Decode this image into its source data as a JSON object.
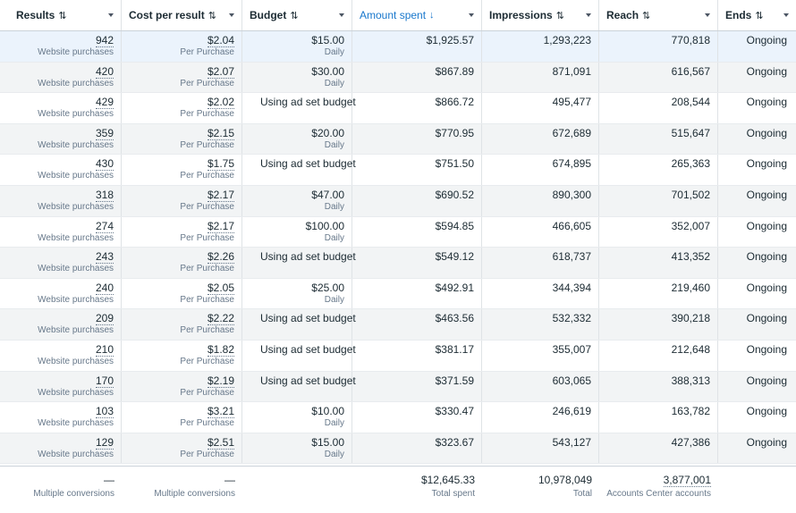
{
  "columns": [
    {
      "label": "Results",
      "sort_icon": "⇅",
      "active": false
    },
    {
      "label": "Cost per result",
      "sort_icon": "⇅",
      "active": false
    },
    {
      "label": "Budget",
      "sort_icon": "⇅",
      "active": false
    },
    {
      "label": "Amount spent",
      "sort_icon": "↓",
      "active": true
    },
    {
      "label": "Impressions",
      "sort_icon": "⇅",
      "active": false
    },
    {
      "label": "Reach",
      "sort_icon": "⇅",
      "active": false
    },
    {
      "label": "Ends",
      "sort_icon": "⇅",
      "active": false
    }
  ],
  "rows": [
    {
      "results": "942",
      "results_sub": "Website purchases",
      "cpr": "$2.04",
      "cpr_sub": "Per Purchase",
      "budget": "$15.00",
      "budget_sub": "Daily",
      "spent": "$1,925.57",
      "impressions": "1,293,223",
      "reach": "770,818",
      "ends": "Ongoing"
    },
    {
      "results": "420",
      "results_sub": "Website purchases",
      "cpr": "$2.07",
      "cpr_sub": "Per Purchase",
      "budget": "$30.00",
      "budget_sub": "Daily",
      "spent": "$867.89",
      "impressions": "871,091",
      "reach": "616,567",
      "ends": "Ongoing"
    },
    {
      "results": "429",
      "results_sub": "Website purchases",
      "cpr": "$2.02",
      "cpr_sub": "Per Purchase",
      "budget": "Using ad set budget",
      "budget_sub": "",
      "spent": "$866.72",
      "impressions": "495,477",
      "reach": "208,544",
      "ends": "Ongoing"
    },
    {
      "results": "359",
      "results_sub": "Website purchases",
      "cpr": "$2.15",
      "cpr_sub": "Per Purchase",
      "budget": "$20.00",
      "budget_sub": "Daily",
      "spent": "$770.95",
      "impressions": "672,689",
      "reach": "515,647",
      "ends": "Ongoing"
    },
    {
      "results": "430",
      "results_sub": "Website purchases",
      "cpr": "$1.75",
      "cpr_sub": "Per Purchase",
      "budget": "Using ad set budget",
      "budget_sub": "",
      "spent": "$751.50",
      "impressions": "674,895",
      "reach": "265,363",
      "ends": "Ongoing"
    },
    {
      "results": "318",
      "results_sub": "Website purchases",
      "cpr": "$2.17",
      "cpr_sub": "Per Purchase",
      "budget": "$47.00",
      "budget_sub": "Daily",
      "spent": "$690.52",
      "impressions": "890,300",
      "reach": "701,502",
      "ends": "Ongoing"
    },
    {
      "results": "274",
      "results_sub": "Website purchases",
      "cpr": "$2.17",
      "cpr_sub": "Per Purchase",
      "budget": "$100.00",
      "budget_sub": "Daily",
      "spent": "$594.85",
      "impressions": "466,605",
      "reach": "352,007",
      "ends": "Ongoing"
    },
    {
      "results": "243",
      "results_sub": "Website purchases",
      "cpr": "$2.26",
      "cpr_sub": "Per Purchase",
      "budget": "Using ad set budget",
      "budget_sub": "",
      "spent": "$549.12",
      "impressions": "618,737",
      "reach": "413,352",
      "ends": "Ongoing"
    },
    {
      "results": "240",
      "results_sub": "Website purchases",
      "cpr": "$2.05",
      "cpr_sub": "Per Purchase",
      "budget": "$25.00",
      "budget_sub": "Daily",
      "spent": "$492.91",
      "impressions": "344,394",
      "reach": "219,460",
      "ends": "Ongoing"
    },
    {
      "results": "209",
      "results_sub": "Website purchases",
      "cpr": "$2.22",
      "cpr_sub": "Per Purchase",
      "budget": "Using ad set budget",
      "budget_sub": "",
      "spent": "$463.56",
      "impressions": "532,332",
      "reach": "390,218",
      "ends": "Ongoing"
    },
    {
      "results": "210",
      "results_sub": "Website purchases",
      "cpr": "$1.82",
      "cpr_sub": "Per Purchase",
      "budget": "Using ad set budget",
      "budget_sub": "",
      "spent": "$381.17",
      "impressions": "355,007",
      "reach": "212,648",
      "ends": "Ongoing"
    },
    {
      "results": "170",
      "results_sub": "Website purchases",
      "cpr": "$2.19",
      "cpr_sub": "Per Purchase",
      "budget": "Using ad set budget",
      "budget_sub": "",
      "spent": "$371.59",
      "impressions": "603,065",
      "reach": "388,313",
      "ends": "Ongoing"
    },
    {
      "results": "103",
      "results_sub": "Website purchases",
      "cpr": "$3.21",
      "cpr_sub": "Per Purchase",
      "budget": "$10.00",
      "budget_sub": "Daily",
      "spent": "$330.47",
      "impressions": "246,619",
      "reach": "163,782",
      "ends": "Ongoing"
    },
    {
      "results": "129",
      "results_sub": "Website purchases",
      "cpr": "$2.51",
      "cpr_sub": "Per Purchase",
      "budget": "$15.00",
      "budget_sub": "Daily",
      "spent": "$323.67",
      "impressions": "543,127",
      "reach": "427,386",
      "ends": "Ongoing"
    }
  ],
  "totals": {
    "results": "—",
    "results_sub": "Multiple conversions",
    "cpr": "—",
    "cpr_sub": "Multiple conversions",
    "budget": "",
    "budget_sub": "",
    "spent": "$12,645.33",
    "spent_sub": "Total spent",
    "impressions": "10,978,049",
    "impressions_sub": "Total",
    "reach": "3,877,001",
    "reach_sub": "Accounts Center accounts",
    "ends": ""
  },
  "colors": {
    "accent": "#1877cc",
    "row_alt": "#f2f4f5",
    "row_selected": "#ebf3fc"
  }
}
